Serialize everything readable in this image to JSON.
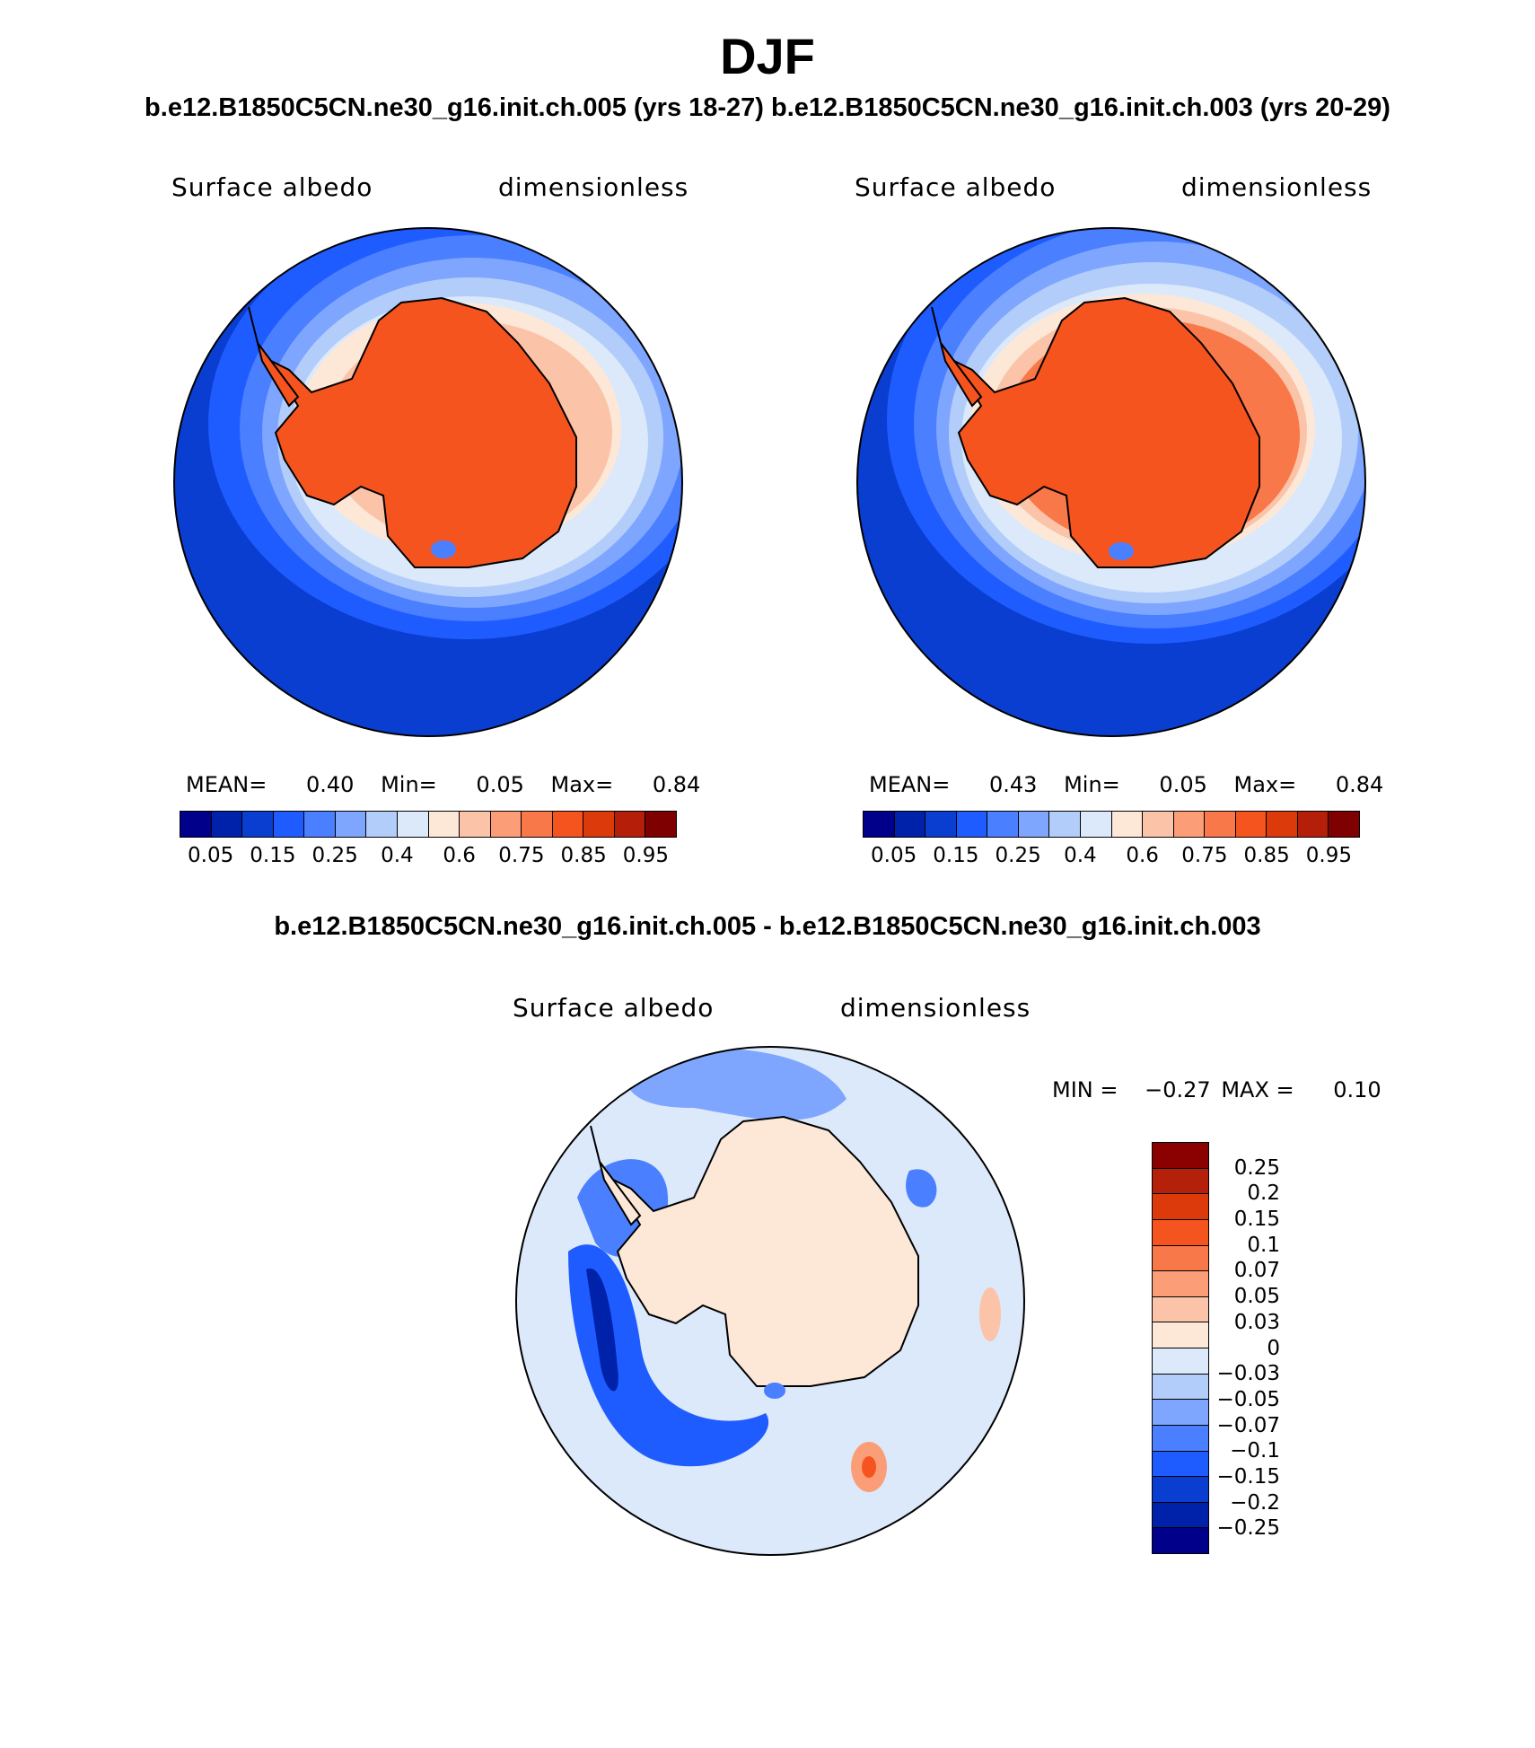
{
  "title": "DJF",
  "subtitle_left": "b.e12.B1850C5CN.ne30_g16.init.ch.005 (yrs 18-27)",
  "subtitle_right": "b.e12.B1850C5CN.ne30_g16.init.ch.003 (yrs 20-29)",
  "panels": [
    {
      "variable": "Surface albedo",
      "units": "dimensionless",
      "mean_label": "MEAN=",
      "mean": "0.40",
      "min_label": "Min=",
      "min": "0.05",
      "max_label": "Max=",
      "max": "0.84"
    },
    {
      "variable": "Surface albedo",
      "units": "dimensionless",
      "mean_label": "MEAN=",
      "mean": "0.43",
      "min_label": "Min=",
      "min": "0.05",
      "max_label": "Max=",
      "max": "0.84"
    }
  ],
  "abs_colorbar": {
    "colors": [
      "#00008b",
      "#0022aa",
      "#0a3ed0",
      "#1f5cff",
      "#4a7fff",
      "#7fa6ff",
      "#b3cdfa",
      "#dbe9fb",
      "#fde8d8",
      "#fbc4a8",
      "#fb9e78",
      "#f9784a",
      "#f5541f",
      "#dd3a0c",
      "#b51f0a",
      "#7f0000"
    ],
    "ticks": [
      "0.05",
      "0.15",
      "0.25",
      "0.4",
      "0.6",
      "0.75",
      "0.85",
      "0.95"
    ]
  },
  "diff": {
    "title": "b.e12.B1850C5CN.ne30_g16.init.ch.005 - b.e12.B1850C5CN.ne30_g16.init.ch.003",
    "variable": "Surface albedo",
    "units": "dimensionless",
    "min_label": "MIN =",
    "min": "−0.27",
    "max_label": "MAX =",
    "max": "0.10",
    "colorbar_colors": [
      "#8b0000",
      "#b5200a",
      "#dd3a0c",
      "#f5541f",
      "#f9784a",
      "#fb9e78",
      "#fbc4a8",
      "#fde8d8",
      "#dbe9fb",
      "#b3cdfa",
      "#7fa6ff",
      "#4a7fff",
      "#1f5cff",
      "#0a3ed0",
      "#0022aa",
      "#00008b"
    ],
    "ticks": [
      "0.25",
      "0.2",
      "0.15",
      "0.1",
      "0.07",
      "0.05",
      "0.03",
      "0",
      "−0.03",
      "−0.05",
      "−0.07",
      "−0.1",
      "−0.15",
      "−0.2",
      "−0.25"
    ]
  }
}
